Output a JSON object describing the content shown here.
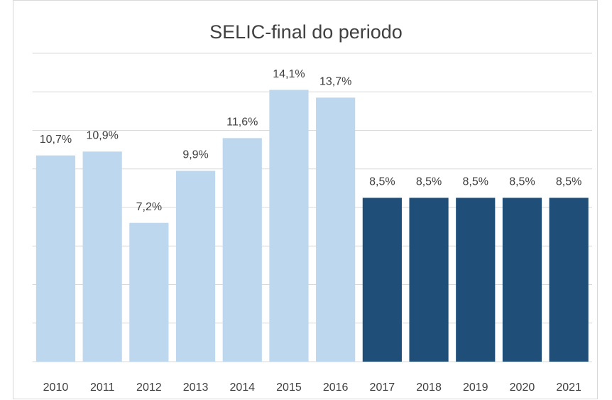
{
  "chart_data": {
    "type": "bar",
    "title": "SELIC-final do periodo",
    "categories": [
      "2010",
      "2011",
      "2012",
      "2013",
      "2014",
      "2015",
      "2016",
      "2017",
      "2018",
      "2019",
      "2020",
      "2021"
    ],
    "values": [
      10.7,
      10.9,
      7.2,
      9.9,
      11.6,
      14.1,
      13.7,
      8.5,
      8.5,
      8.5,
      8.5,
      8.5
    ],
    "value_labels": [
      "10,7%",
      "10,9%",
      "7,2%",
      "9,9%",
      "11,6%",
      "14,1%",
      "13,7%",
      "8,5%",
      "8,5%",
      "8,5%",
      "8,5%",
      "8,5%"
    ],
    "colors": [
      "#bdd7ee",
      "#bdd7ee",
      "#bdd7ee",
      "#bdd7ee",
      "#bdd7ee",
      "#bdd7ee",
      "#bdd7ee",
      "#1f4e79",
      "#1f4e79",
      "#1f4e79",
      "#1f4e79",
      "#1f4e79"
    ],
    "ylim": [
      0,
      16
    ],
    "yticks": [
      0,
      2,
      4,
      6,
      8,
      10,
      12,
      14,
      16
    ],
    "grid": true
  }
}
